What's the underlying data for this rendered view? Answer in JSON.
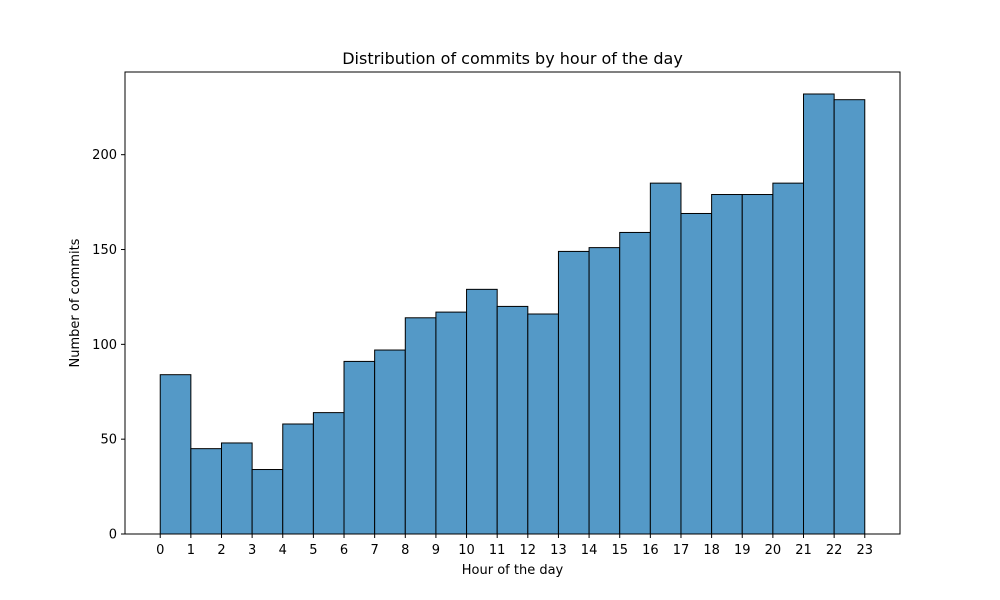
{
  "chart_data": {
    "type": "bar",
    "title": "Distribution of commits by hour of the day",
    "xlabel": "Hour of the day",
    "ylabel": "Number of commits",
    "bin_edges": [
      0,
      1,
      2,
      3,
      4,
      5,
      6,
      7,
      8,
      9,
      10,
      11,
      12,
      13,
      14,
      15,
      16,
      17,
      18,
      19,
      20,
      21,
      22,
      23
    ],
    "values": [
      84,
      45,
      48,
      34,
      58,
      64,
      91,
      97,
      114,
      117,
      129,
      120,
      116,
      149,
      151,
      159,
      185,
      169,
      179,
      179,
      185,
      232,
      229
    ],
    "x_ticks": [
      "0",
      "1",
      "2",
      "3",
      "4",
      "5",
      "6",
      "7",
      "8",
      "9",
      "10",
      "11",
      "12",
      "13",
      "14",
      "15",
      "16",
      "17",
      "18",
      "19",
      "20",
      "21",
      "22",
      "23"
    ],
    "y_ticks": [
      "0",
      "50",
      "100",
      "150",
      "200"
    ],
    "xlim": [
      -1.15,
      24.15
    ],
    "ylim": [
      0,
      243.6
    ],
    "grid": false,
    "colors": {
      "bar_fill": "#5499c7",
      "bar_edge": "#000000"
    }
  }
}
